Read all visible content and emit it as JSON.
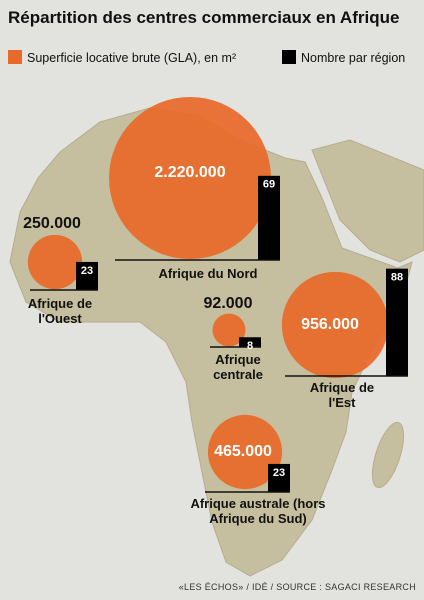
{
  "chart_data": {
    "type": "proportional",
    "title": "Répartition des centres commerciaux en Afrique",
    "categories": [
      "Afrique du Nord",
      "Afrique de l'Ouest",
      "Afrique centrale",
      "Afrique de l'Est",
      "Afrique australe (hors Afrique du Sud)"
    ],
    "series": [
      {
        "name": "Superficie locative brute (GLA), en m²",
        "color": "#e8692a",
        "values": [
          2220000,
          250000,
          92000,
          956000,
          465000
        ],
        "value_labels": [
          "2.220.000",
          "250.000",
          "92.000",
          "956.000",
          "465.000"
        ]
      },
      {
        "name": "Nombre par région",
        "color": "#000000",
        "values": [
          69,
          23,
          8,
          88,
          23
        ]
      }
    ],
    "source": "«LES ÉCHOS» / IDÉ / SOURCE : SAGACI RESEARCH"
  }
}
